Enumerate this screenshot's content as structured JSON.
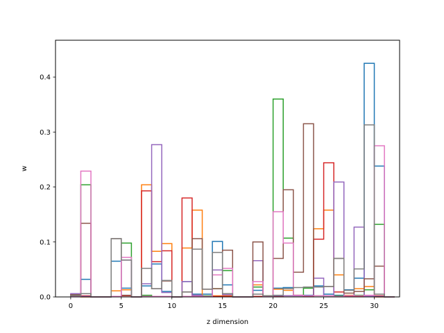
{
  "chart_data": {
    "type": "step-histogram",
    "xlabel": "z dimension",
    "ylabel": "w",
    "xlim": [
      -1.5,
      32.5
    ],
    "ylim": [
      0,
      0.467
    ],
    "xticks": [
      0,
      5,
      10,
      15,
      20,
      25,
      30
    ],
    "yticks": [
      0.0,
      0.1,
      0.2,
      0.3,
      0.4
    ],
    "x_bins": [
      0,
      1,
      2,
      3,
      4,
      5,
      6,
      7,
      8,
      9,
      10,
      11,
      12,
      13,
      14,
      15,
      16,
      17,
      18,
      19,
      20,
      21,
      22,
      23,
      24,
      25,
      26,
      27,
      28,
      29,
      30,
      31
    ],
    "grid": false,
    "legend": "none",
    "series": [
      {
        "color": "#1f77b4",
        "values": [
          0.004,
          0.032,
          0,
          0,
          0.065,
          0.016,
          0,
          0.02,
          0.06,
          0.01,
          0,
          0.028,
          0.005,
          0.005,
          0.101,
          0.022,
          0,
          0,
          0.012,
          0.002,
          0.016,
          0.017,
          0.003,
          0.003,
          0.02,
          0.005,
          0.003,
          0.013,
          0.034,
          0.425,
          0.238,
          0
        ]
      },
      {
        "color": "#ff7f0e",
        "values": [
          0.003,
          0,
          0,
          0,
          0.011,
          0.013,
          0,
          0.204,
          0.083,
          0.097,
          0,
          0.089,
          0.158,
          0.001,
          0.002,
          0.002,
          0,
          0,
          0.022,
          0.002,
          0.014,
          0.012,
          0.003,
          0.002,
          0.124,
          0.158,
          0.04,
          0.003,
          0.015,
          0.019,
          0,
          0
        ]
      },
      {
        "color": "#2ca02c",
        "values": [
          0.002,
          0.204,
          0,
          0,
          0.001,
          0.098,
          0,
          0.003,
          0.001,
          0.001,
          0,
          0.001,
          0.001,
          0.002,
          0.015,
          0.048,
          0,
          0,
          0.018,
          0.002,
          0.36,
          0.107,
          0.002,
          0.016,
          0.002,
          0.002,
          0.002,
          0.002,
          0.003,
          0.013,
          0.132,
          0
        ]
      },
      {
        "color": "#d62728",
        "values": [
          0.001,
          0.002,
          0,
          0,
          0.001,
          0.002,
          0,
          0.193,
          0.064,
          0.084,
          0,
          0.18,
          0.003,
          0.001,
          0.001,
          0.001,
          0,
          0,
          0.001,
          0.001,
          0.001,
          0.002,
          0.002,
          0.001,
          0.105,
          0.244,
          0.009,
          0.001,
          0.001,
          0.001,
          0.002,
          0
        ]
      },
      {
        "color": "#9467bd",
        "values": [
          0.006,
          0.001,
          0,
          0,
          0.001,
          0.067,
          0,
          0.024,
          0.277,
          0.008,
          0,
          0.028,
          0.003,
          0.001,
          0.049,
          0.004,
          0,
          0,
          0.066,
          0.001,
          0.002,
          0.002,
          0.002,
          0.002,
          0.034,
          0.002,
          0.209,
          0.002,
          0.127,
          0.001,
          0.001,
          0
        ]
      },
      {
        "color": "#8c564b",
        "values": [
          0.004,
          0.134,
          0,
          0,
          0.106,
          0.003,
          0,
          0.052,
          0.015,
          0.029,
          0,
          0.009,
          0.106,
          0.014,
          0.015,
          0.085,
          0,
          0,
          0.1,
          0.002,
          0.07,
          0.195,
          0.045,
          0.315,
          0.018,
          0.019,
          0.07,
          0.007,
          0.01,
          0.033,
          0.056,
          0
        ]
      },
      {
        "color": "#e377c2",
        "values": [
          0.001,
          0.229,
          0,
          0,
          0.001,
          0.072,
          0,
          0.001,
          0.001,
          0.001,
          0,
          0.001,
          0.001,
          0.001,
          0.04,
          0.052,
          0,
          0,
          0.028,
          0.001,
          0.155,
          0.098,
          0.003,
          0.002,
          0.002,
          0.002,
          0.001,
          0.002,
          0.002,
          0.003,
          0.275,
          0
        ]
      },
      {
        "color": "#7f7f7f",
        "values": [
          0.002,
          0.006,
          0,
          0,
          0.106,
          0.067,
          0,
          0.052,
          0.015,
          0.03,
          0,
          0.009,
          0.087,
          0.014,
          0.081,
          0.006,
          0,
          0,
          0.005,
          0.002,
          0.003,
          0.015,
          0.017,
          0.018,
          0.018,
          0.019,
          0.07,
          0.012,
          0.051,
          0.313,
          0.005,
          0
        ]
      }
    ]
  }
}
